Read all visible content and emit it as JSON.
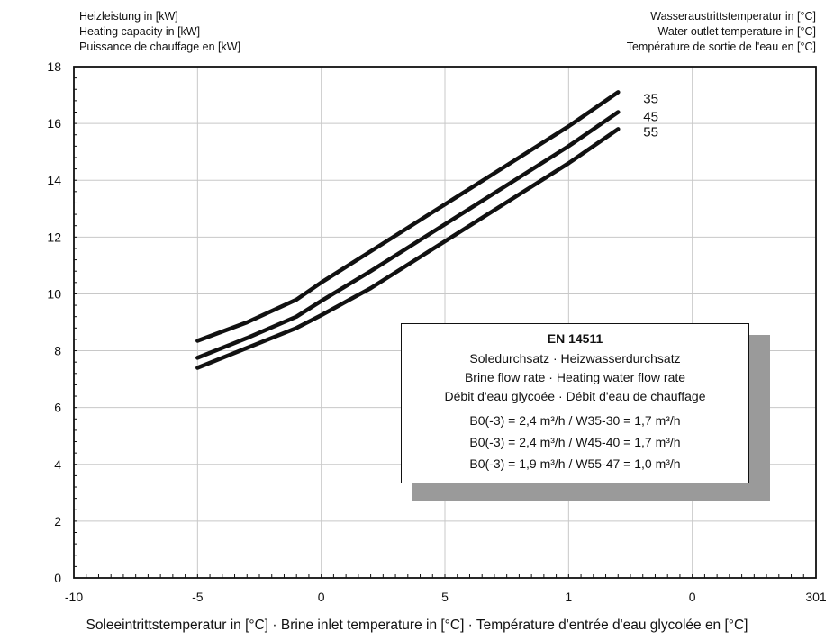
{
  "header_left": [
    "Heizleistung in [kW]",
    "Heating capacity in [kW]",
    "Puissance de chauffage en [kW]"
  ],
  "header_right": [
    "Wasseraustrittstemperatur in [°C]",
    "Water outlet temperature in [°C]",
    "Température de sortie de l'eau en [°C]"
  ],
  "legend_box": {
    "title": "EN 14511",
    "lines": [
      "Soledurchsatz · Heizwasserdurchsatz",
      "Brine flow rate · Heating water flow rate",
      "Débit d'eau glycoée · Débit d'eau de chauffage"
    ],
    "flows": [
      "B0(-3) = 2,4 m³/h  /  W35-30 = 1,7 m³/h",
      "B0(-3) = 2,4 m³/h  /  W45-40 = 1,7 m³/h",
      "B0(-3) = 1,9 m³/h  /  W55-47 = 1,0 m³/h"
    ]
  },
  "chart_data": {
    "type": "line",
    "xlabel": "Soleeintrittstemperatur in [°C] · Brine inlet temperature in [°C] · Température d'entrée d'eau glycolée en [°C]",
    "x_tick_labels": [
      "-10",
      "-5",
      "0",
      "5",
      "1",
      "0",
      "301"
    ],
    "y_ticks": [
      0,
      2,
      4,
      6,
      8,
      10,
      12,
      14,
      16,
      18
    ],
    "xlim": [
      -10,
      20
    ],
    "ylim": [
      0,
      18
    ],
    "grid": true,
    "series": [
      {
        "name": "35",
        "x": [
          -5,
          -3,
          -1,
          0,
          2,
          4,
          6,
          8,
          10,
          12
        ],
        "y": [
          8.35,
          9.0,
          9.8,
          10.4,
          11.5,
          12.6,
          13.7,
          14.8,
          15.9,
          17.1
        ]
      },
      {
        "name": "45",
        "x": [
          -5,
          -3,
          -1,
          0,
          2,
          4,
          6,
          8,
          10,
          12
        ],
        "y": [
          7.75,
          8.45,
          9.2,
          9.75,
          10.8,
          11.9,
          13.0,
          14.1,
          15.2,
          16.4
        ]
      },
      {
        "name": "55",
        "x": [
          -5,
          -3,
          -1,
          0,
          2,
          4,
          6,
          8,
          10,
          12
        ],
        "y": [
          7.4,
          8.1,
          8.8,
          9.25,
          10.2,
          11.3,
          12.4,
          13.5,
          14.6,
          15.8
        ]
      }
    ]
  }
}
